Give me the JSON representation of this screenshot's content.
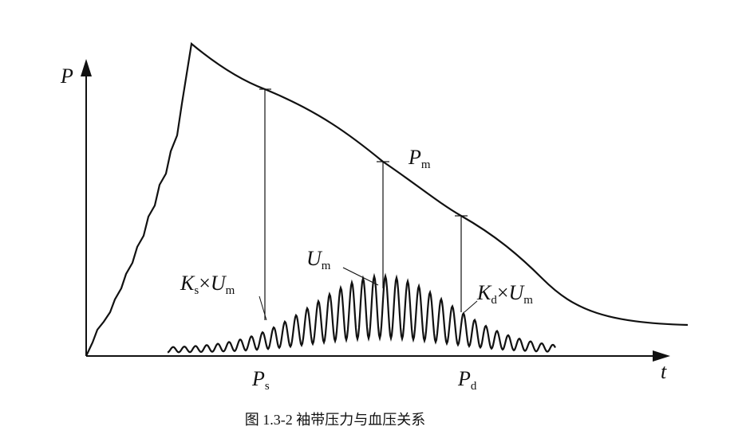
{
  "figure": {
    "axis_y_label": "P",
    "axis_x_label": "t",
    "labels": {
      "pm": {
        "base": "P",
        "sub": "m"
      },
      "um": {
        "base": "U",
        "sub": "m"
      },
      "ks_um": {
        "base": "K",
        "sub": "s",
        "op": "×",
        "base2": "U",
        "sub2": "m"
      },
      "kd_um": {
        "base": "K",
        "sub": "d",
        "op": "×",
        "base2": "U",
        "sub2": "m"
      },
      "ps": {
        "base": "P",
        "sub": "s"
      },
      "pd": {
        "base": "P",
        "sub": "d"
      }
    },
    "caption": "图 1.3-2  袖带压力与血压关系"
  }
}
